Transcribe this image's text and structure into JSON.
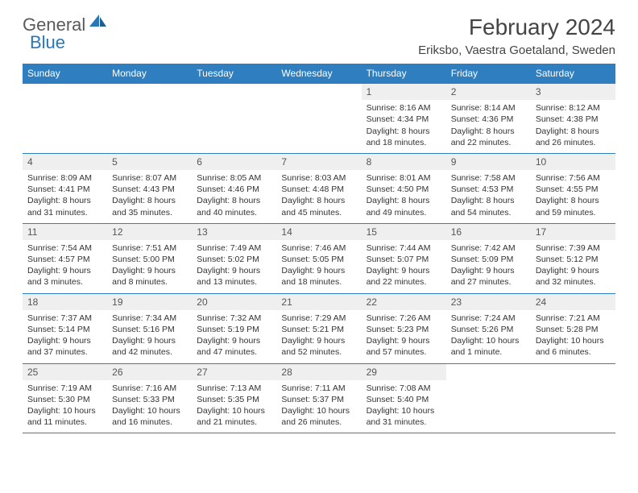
{
  "logo": {
    "word1": "General",
    "word2": "Blue"
  },
  "title": "February 2024",
  "location": "Eriksbo, Vaestra Goetaland, Sweden",
  "colors": {
    "accent": "#2f7ebf",
    "logo_blue": "#2a77b8",
    "logo_gray": "#5a5a5a",
    "daynum_bg": "#efefef",
    "text": "#333333"
  },
  "weekdays": [
    "Sunday",
    "Monday",
    "Tuesday",
    "Wednesday",
    "Thursday",
    "Friday",
    "Saturday"
  ],
  "weeks": [
    [
      {
        "empty": true
      },
      {
        "empty": true
      },
      {
        "empty": true
      },
      {
        "empty": true
      },
      {
        "num": "1",
        "sunrise": "Sunrise: 8:16 AM",
        "sunset": "Sunset: 4:34 PM",
        "daylight": "Daylight: 8 hours and 18 minutes."
      },
      {
        "num": "2",
        "sunrise": "Sunrise: 8:14 AM",
        "sunset": "Sunset: 4:36 PM",
        "daylight": "Daylight: 8 hours and 22 minutes."
      },
      {
        "num": "3",
        "sunrise": "Sunrise: 8:12 AM",
        "sunset": "Sunset: 4:38 PM",
        "daylight": "Daylight: 8 hours and 26 minutes."
      }
    ],
    [
      {
        "num": "4",
        "sunrise": "Sunrise: 8:09 AM",
        "sunset": "Sunset: 4:41 PM",
        "daylight": "Daylight: 8 hours and 31 minutes."
      },
      {
        "num": "5",
        "sunrise": "Sunrise: 8:07 AM",
        "sunset": "Sunset: 4:43 PM",
        "daylight": "Daylight: 8 hours and 35 minutes."
      },
      {
        "num": "6",
        "sunrise": "Sunrise: 8:05 AM",
        "sunset": "Sunset: 4:46 PM",
        "daylight": "Daylight: 8 hours and 40 minutes."
      },
      {
        "num": "7",
        "sunrise": "Sunrise: 8:03 AM",
        "sunset": "Sunset: 4:48 PM",
        "daylight": "Daylight: 8 hours and 45 minutes."
      },
      {
        "num": "8",
        "sunrise": "Sunrise: 8:01 AM",
        "sunset": "Sunset: 4:50 PM",
        "daylight": "Daylight: 8 hours and 49 minutes."
      },
      {
        "num": "9",
        "sunrise": "Sunrise: 7:58 AM",
        "sunset": "Sunset: 4:53 PM",
        "daylight": "Daylight: 8 hours and 54 minutes."
      },
      {
        "num": "10",
        "sunrise": "Sunrise: 7:56 AM",
        "sunset": "Sunset: 4:55 PM",
        "daylight": "Daylight: 8 hours and 59 minutes."
      }
    ],
    [
      {
        "num": "11",
        "sunrise": "Sunrise: 7:54 AM",
        "sunset": "Sunset: 4:57 PM",
        "daylight": "Daylight: 9 hours and 3 minutes."
      },
      {
        "num": "12",
        "sunrise": "Sunrise: 7:51 AM",
        "sunset": "Sunset: 5:00 PM",
        "daylight": "Daylight: 9 hours and 8 minutes."
      },
      {
        "num": "13",
        "sunrise": "Sunrise: 7:49 AM",
        "sunset": "Sunset: 5:02 PM",
        "daylight": "Daylight: 9 hours and 13 minutes."
      },
      {
        "num": "14",
        "sunrise": "Sunrise: 7:46 AM",
        "sunset": "Sunset: 5:05 PM",
        "daylight": "Daylight: 9 hours and 18 minutes."
      },
      {
        "num": "15",
        "sunrise": "Sunrise: 7:44 AM",
        "sunset": "Sunset: 5:07 PM",
        "daylight": "Daylight: 9 hours and 22 minutes."
      },
      {
        "num": "16",
        "sunrise": "Sunrise: 7:42 AM",
        "sunset": "Sunset: 5:09 PM",
        "daylight": "Daylight: 9 hours and 27 minutes."
      },
      {
        "num": "17",
        "sunrise": "Sunrise: 7:39 AM",
        "sunset": "Sunset: 5:12 PM",
        "daylight": "Daylight: 9 hours and 32 minutes."
      }
    ],
    [
      {
        "num": "18",
        "sunrise": "Sunrise: 7:37 AM",
        "sunset": "Sunset: 5:14 PM",
        "daylight": "Daylight: 9 hours and 37 minutes."
      },
      {
        "num": "19",
        "sunrise": "Sunrise: 7:34 AM",
        "sunset": "Sunset: 5:16 PM",
        "daylight": "Daylight: 9 hours and 42 minutes."
      },
      {
        "num": "20",
        "sunrise": "Sunrise: 7:32 AM",
        "sunset": "Sunset: 5:19 PM",
        "daylight": "Daylight: 9 hours and 47 minutes."
      },
      {
        "num": "21",
        "sunrise": "Sunrise: 7:29 AM",
        "sunset": "Sunset: 5:21 PM",
        "daylight": "Daylight: 9 hours and 52 minutes."
      },
      {
        "num": "22",
        "sunrise": "Sunrise: 7:26 AM",
        "sunset": "Sunset: 5:23 PM",
        "daylight": "Daylight: 9 hours and 57 minutes."
      },
      {
        "num": "23",
        "sunrise": "Sunrise: 7:24 AM",
        "sunset": "Sunset: 5:26 PM",
        "daylight": "Daylight: 10 hours and 1 minute."
      },
      {
        "num": "24",
        "sunrise": "Sunrise: 7:21 AM",
        "sunset": "Sunset: 5:28 PM",
        "daylight": "Daylight: 10 hours and 6 minutes."
      }
    ],
    [
      {
        "num": "25",
        "sunrise": "Sunrise: 7:19 AM",
        "sunset": "Sunset: 5:30 PM",
        "daylight": "Daylight: 10 hours and 11 minutes."
      },
      {
        "num": "26",
        "sunrise": "Sunrise: 7:16 AM",
        "sunset": "Sunset: 5:33 PM",
        "daylight": "Daylight: 10 hours and 16 minutes."
      },
      {
        "num": "27",
        "sunrise": "Sunrise: 7:13 AM",
        "sunset": "Sunset: 5:35 PM",
        "daylight": "Daylight: 10 hours and 21 minutes."
      },
      {
        "num": "28",
        "sunrise": "Sunrise: 7:11 AM",
        "sunset": "Sunset: 5:37 PM",
        "daylight": "Daylight: 10 hours and 26 minutes."
      },
      {
        "num": "29",
        "sunrise": "Sunrise: 7:08 AM",
        "sunset": "Sunset: 5:40 PM",
        "daylight": "Daylight: 10 hours and 31 minutes."
      },
      {
        "empty": true
      },
      {
        "empty": true
      }
    ]
  ]
}
